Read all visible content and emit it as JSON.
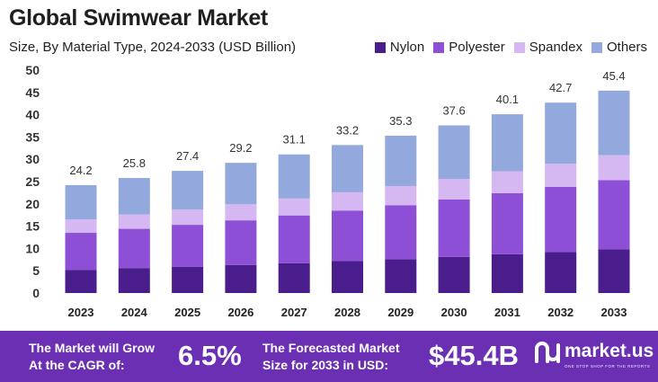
{
  "header": {
    "title": "Global Swimwear Market",
    "subtitle": "Size, By Material Type, 2024-2033 (USD Billion)"
  },
  "colors": {
    "nylon": "#4a1d8c",
    "polyester": "#8c4fd6",
    "spandex": "#d5b7f2",
    "others": "#93a9dd",
    "banner": "#6a2fb3"
  },
  "chart_data": {
    "type": "bar",
    "stacked": true,
    "categories": [
      "2023",
      "2024",
      "2025",
      "2026",
      "2027",
      "2028",
      "2029",
      "2030",
      "2031",
      "2032",
      "2033"
    ],
    "series": [
      {
        "name": "Nylon",
        "values": [
          5.2,
          5.6,
          5.9,
          6.3,
          6.7,
          7.2,
          7.6,
          8.1,
          8.7,
          9.2,
          9.8
        ]
      },
      {
        "name": "Polyester",
        "values": [
          8.3,
          8.8,
          9.4,
          10.0,
          10.7,
          11.3,
          12.1,
          12.9,
          13.7,
          14.6,
          15.5
        ]
      },
      {
        "name": "Spandex",
        "values": [
          3.0,
          3.2,
          3.4,
          3.6,
          3.8,
          4.1,
          4.3,
          4.6,
          4.9,
          5.2,
          5.6
        ]
      },
      {
        "name": "Others",
        "values": [
          7.7,
          8.2,
          8.7,
          9.3,
          9.9,
          10.6,
          11.3,
          12.0,
          12.8,
          13.7,
          14.5
        ]
      }
    ],
    "totals": [
      "24.2",
      "25.8",
      "27.4",
      "29.2",
      "31.1",
      "33.2",
      "35.3",
      "37.6",
      "40.1",
      "42.7",
      "45.4"
    ],
    "ylim": [
      0,
      50
    ],
    "yticks": [
      "0",
      "5",
      "10",
      "15",
      "20",
      "25",
      "30",
      "35",
      "40",
      "45",
      "50"
    ],
    "legend_position": "top-right",
    "grid": false
  },
  "banner": {
    "grow_line1": "The Market will Grow",
    "grow_line2": "At the CAGR of:",
    "cagr": "6.5%",
    "forecast_line1": "The Forecasted Market",
    "forecast_line2": "Size for 2033 in USD:",
    "forecast_value": "$45.4B",
    "brand_name": "market.us",
    "brand_tagline": "ONE STOP SHOP FOR THE REPORTS"
  }
}
